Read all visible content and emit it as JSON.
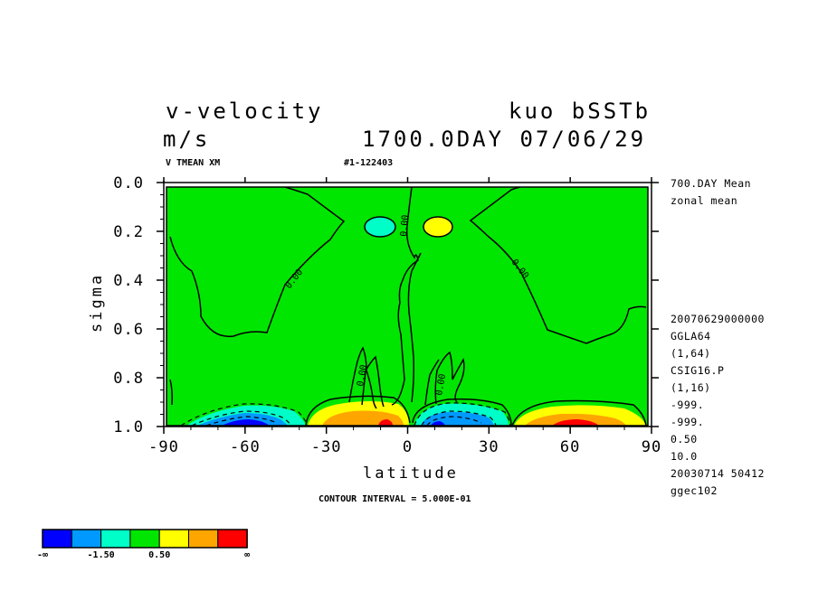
{
  "title": {
    "variable": "v-velocity",
    "experiment": "kuo bSSTb",
    "unit": "m/s",
    "timestamp": "1700.0DAY 07/06/29",
    "subtitle_left": "V TMEAN XM",
    "subtitle_mid": "#1-122403"
  },
  "side_labels_top": [
    "700.DAY Mean",
    "zonal mean"
  ],
  "side_labels_bottom": [
    "20070629000000",
    "GGLA64",
    "(1,64)",
    "CSIG16.P",
    "(1,16)",
    "-999.",
    "-999.",
    "0.50",
    "10.0",
    "20030714  50412",
    "ggec102"
  ],
  "contour_interval_text": "CONTOUR INTERVAL = 5.000E-01",
  "contour_label": "0.00",
  "colorbar": {
    "colors": [
      "#0000ff",
      "#0099ff",
      "#00ffc8",
      "#00e600",
      "#ffff00",
      "#ffa500",
      "#ff0000"
    ],
    "labels": [
      "-∞",
      "-1.50",
      "0.50",
      "∞"
    ]
  },
  "chart_data": {
    "type": "contour",
    "xlabel": "latitude",
    "ylabel": "sigma",
    "xlim": [
      -90,
      90
    ],
    "ylim": [
      1.0,
      0.0
    ],
    "x_ticks": [
      "-90",
      "-60",
      "-30",
      "0",
      "30",
      "60",
      "90"
    ],
    "y_ticks": [
      "0.0",
      "0.2",
      "0.4",
      "0.6",
      "0.8",
      "1.0"
    ],
    "contour_interval": 0.5,
    "features": [
      {
        "name": "southern-surface-southward-flow",
        "lat_range": [
          -88,
          -40
        ],
        "sigma_range": [
          0.92,
          1.0
        ],
        "min_value": -2.5
      },
      {
        "name": "southern-surface-northward-flow",
        "lat_range": [
          -37,
          -2
        ],
        "sigma_range": [
          0.91,
          1.0
        ],
        "max_value": 2.0
      },
      {
        "name": "northern-surface-southward-flow",
        "lat_range": [
          2,
          35
        ],
        "sigma_range": [
          0.91,
          1.0
        ],
        "min_value": -2.0
      },
      {
        "name": "northern-surface-northward-flow",
        "lat_range": [
          40,
          88
        ],
        "sigma_range": [
          0.91,
          1.0
        ],
        "max_value": 2.5
      },
      {
        "name": "upper-southern-cell",
        "lat_range": [
          -18,
          -6
        ],
        "sigma_range": [
          0.15,
          0.21
        ],
        "min_value": -1.0
      },
      {
        "name": "upper-northern-cell",
        "lat_range": [
          6,
          15
        ],
        "sigma_range": [
          0.15,
          0.21
        ],
        "max_value": 1.0
      }
    ]
  }
}
